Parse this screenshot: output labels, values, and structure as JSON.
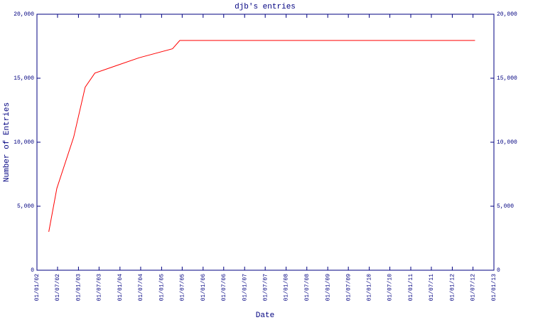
{
  "chart_data": {
    "type": "line",
    "title": "djb's entries",
    "xlabel": "Date",
    "ylabel": "Number of Entries",
    "x": [
      "15/04/02",
      "25/06/02",
      "20/11/02",
      "01/03/03",
      "25/05/03",
      "05/12/03",
      "18/06/04",
      "07/04/05",
      "10/06/05",
      "19/07/12"
    ],
    "series": [
      {
        "name": "djb",
        "color": "#ff0000",
        "values": [
          3000,
          6400,
          10400,
          14300,
          15400,
          16000,
          16600,
          17300,
          17950,
          17950
        ]
      }
    ],
    "xlim": [
      "01/01/02",
      "01/01/13"
    ],
    "xticks": [
      "01/01/02",
      "01/07/02",
      "01/01/03",
      "01/07/03",
      "01/01/04",
      "01/07/04",
      "01/01/05",
      "01/07/05",
      "01/01/06",
      "01/07/06",
      "01/01/07",
      "01/07/07",
      "01/01/08",
      "01/07/08",
      "01/01/09",
      "01/07/09",
      "01/01/10",
      "01/07/10",
      "01/01/11",
      "01/07/11",
      "01/01/12",
      "01/07/12",
      "01/01/13"
    ],
    "ylim": [
      0,
      20000
    ],
    "yticks": [
      0,
      {
        "value": 5000,
        "label": "5,000"
      },
      {
        "value": 10000,
        "label": "10,000"
      },
      {
        "value": 15000,
        "label": "15,000"
      },
      {
        "value": 20000,
        "label": "20,000"
      }
    ],
    "y2lim": [
      0,
      20000
    ],
    "y2ticks": [
      0,
      {
        "value": 5000,
        "label": "5,000"
      },
      {
        "value": 10000,
        "label": "10,000"
      },
      {
        "value": 15000,
        "label": "15,000"
      },
      {
        "value": 20000,
        "label": "20,000"
      }
    ],
    "axis_color": "#000080"
  }
}
